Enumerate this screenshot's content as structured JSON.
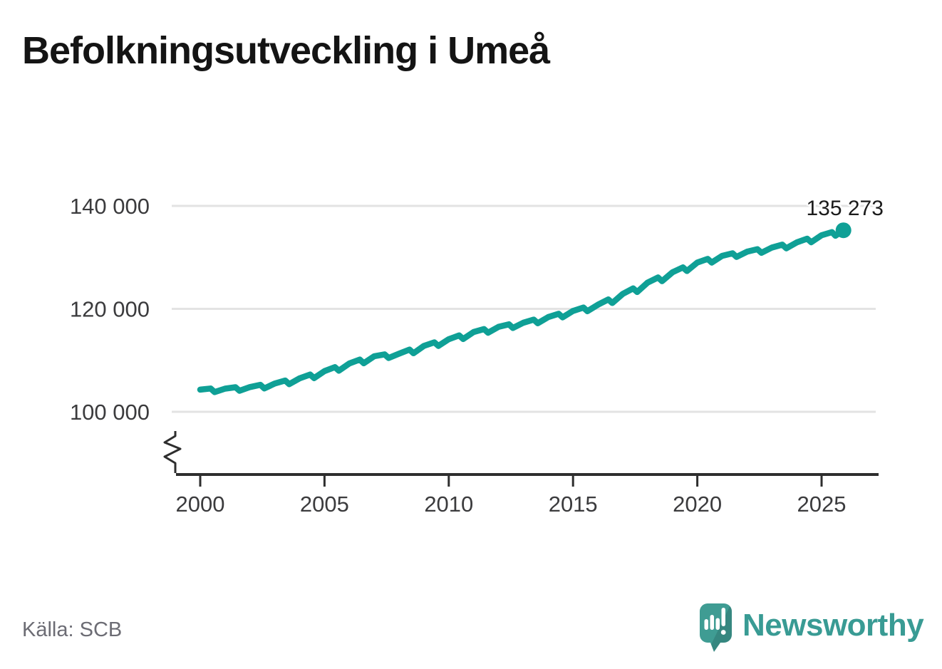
{
  "page": {
    "title": "Befolkningsutveckling i Umeå"
  },
  "source": {
    "label": "Källa: SCB"
  },
  "branding": {
    "wordmark": "Newsworthy",
    "logo_icon": "newsworthy-speech-bubble-chart-icon",
    "teal": "#399b94"
  },
  "chart_data": {
    "type": "line",
    "title": "Befolkningsutveckling i Umeå",
    "xlabel": "",
    "ylabel": "",
    "grid": "horizontal-only",
    "legend": "none",
    "axis_break": true,
    "xlim": [
      1999.0,
      2027.3
    ],
    "ylim_visible": [
      100000,
      143000
    ],
    "line_color": "#0fa096",
    "grid_color": "#e3e3e3",
    "axis_color": "#2e2e2e",
    "end_label": "135 273",
    "end_value": 135273,
    "y_ticks": [
      {
        "value": 140000,
        "label": "140 000"
      },
      {
        "value": 120000,
        "label": "120 000"
      },
      {
        "value": 100000,
        "label": "100 000"
      }
    ],
    "x_ticks": [
      {
        "year": 2000,
        "label": "2000"
      },
      {
        "year": 2005,
        "label": "2005"
      },
      {
        "year": 2010,
        "label": "2010"
      },
      {
        "year": 2015,
        "label": "2015"
      },
      {
        "year": 2020,
        "label": "2020"
      },
      {
        "year": 2025,
        "label": "2025"
      }
    ],
    "series": [
      {
        "points": [
          [
            2000,
            104300
          ],
          [
            2000.42,
            104530
          ],
          [
            2000.58,
            103830
          ],
          [
            2001,
            104500
          ],
          [
            2001.42,
            104780
          ],
          [
            2001.58,
            104080
          ],
          [
            2002,
            104800
          ],
          [
            2002.42,
            105240
          ],
          [
            2002.58,
            104540
          ],
          [
            2003,
            105500
          ],
          [
            2003.42,
            106070
          ],
          [
            2003.58,
            105370
          ],
          [
            2004,
            106500
          ],
          [
            2004.42,
            107240
          ],
          [
            2004.58,
            106540
          ],
          [
            2005,
            107900
          ],
          [
            2005.42,
            108680
          ],
          [
            2005.58,
            107980
          ],
          [
            2006,
            109400
          ],
          [
            2006.42,
            110140
          ],
          [
            2006.58,
            109440
          ],
          [
            2007,
            110800
          ],
          [
            2007.42,
            111160
          ],
          [
            2007.58,
            110460
          ],
          [
            2008,
            111300
          ],
          [
            2008.42,
            112080
          ],
          [
            2008.58,
            111380
          ],
          [
            2009,
            112800
          ],
          [
            2009.42,
            113500
          ],
          [
            2009.58,
            112800
          ],
          [
            2010,
            114100
          ],
          [
            2010.42,
            114840
          ],
          [
            2010.58,
            114140
          ],
          [
            2011,
            115500
          ],
          [
            2011.42,
            116070
          ],
          [
            2011.58,
            115370
          ],
          [
            2012,
            116500
          ],
          [
            2012.42,
            116990
          ],
          [
            2012.58,
            116290
          ],
          [
            2013,
            117300
          ],
          [
            2013.42,
            117910
          ],
          [
            2013.58,
            117210
          ],
          [
            2014,
            118400
          ],
          [
            2014.42,
            119050
          ],
          [
            2014.58,
            118350
          ],
          [
            2015,
            119600
          ],
          [
            2015.42,
            120250
          ],
          [
            2015.58,
            119550
          ],
          [
            2016,
            120800
          ],
          [
            2016.42,
            121830
          ],
          [
            2016.58,
            121130
          ],
          [
            2017,
            122900
          ],
          [
            2017.42,
            123970
          ],
          [
            2017.58,
            123270
          ],
          [
            2018,
            125100
          ],
          [
            2018.42,
            126090
          ],
          [
            2018.58,
            125390
          ],
          [
            2019,
            127100
          ],
          [
            2019.42,
            128050
          ],
          [
            2019.58,
            127350
          ],
          [
            2020,
            129000
          ],
          [
            2020.42,
            129700
          ],
          [
            2020.58,
            129000
          ],
          [
            2021,
            130300
          ],
          [
            2021.42,
            130790
          ],
          [
            2021.58,
            130090
          ],
          [
            2022,
            131100
          ],
          [
            2022.42,
            131590
          ],
          [
            2022.58,
            130890
          ],
          [
            2023,
            131900
          ],
          [
            2023.42,
            132470
          ],
          [
            2023.58,
            131770
          ],
          [
            2024,
            132900
          ],
          [
            2024.42,
            133640
          ],
          [
            2024.58,
            132940
          ],
          [
            2025,
            134300
          ],
          [
            2025.42,
            134900
          ],
          [
            2025.56,
            134200
          ],
          [
            2025.88,
            135273
          ]
        ]
      }
    ]
  }
}
